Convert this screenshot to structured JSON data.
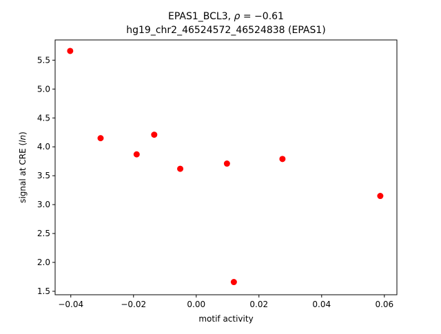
{
  "chart_data": {
    "type": "scatter",
    "title_line1_prefix": "EPAS1_BCL3, ",
    "title_line1_rho": "ρ",
    "title_line1_suffix": " = −0.61",
    "title_line2": "hg19_chr2_46524572_46524838 (EPAS1)",
    "xlabel": "motif activity",
    "ylabel_prefix": "signal at CRE (",
    "ylabel_italic": "ln",
    "ylabel_suffix": ")",
    "xlim": [
      -0.045,
      0.064
    ],
    "ylim": [
      1.44,
      5.85
    ],
    "xticks": [
      -0.04,
      -0.02,
      0.0,
      0.02,
      0.04,
      0.06
    ],
    "xtick_labels": [
      "−0.04",
      "−0.02",
      "0.00",
      "0.02",
      "0.04",
      "0.06"
    ],
    "yticks": [
      1.5,
      2.0,
      2.5,
      3.0,
      3.5,
      4.0,
      4.5,
      5.0,
      5.5
    ],
    "ytick_labels": [
      "1.5",
      "2.0",
      "2.5",
      "3.0",
      "3.5",
      "4.0",
      "4.5",
      "5.0",
      "5.5"
    ],
    "marker_color": "#ff0000",
    "points": [
      {
        "x": -0.0402,
        "y": 5.66
      },
      {
        "x": -0.0305,
        "y": 4.15
      },
      {
        "x": -0.019,
        "y": 3.87
      },
      {
        "x": -0.0134,
        "y": 4.21
      },
      {
        "x": -0.0051,
        "y": 3.62
      },
      {
        "x": 0.0098,
        "y": 3.71
      },
      {
        "x": 0.012,
        "y": 1.66
      },
      {
        "x": 0.0275,
        "y": 3.79
      },
      {
        "x": 0.0587,
        "y": 3.15
      }
    ]
  }
}
